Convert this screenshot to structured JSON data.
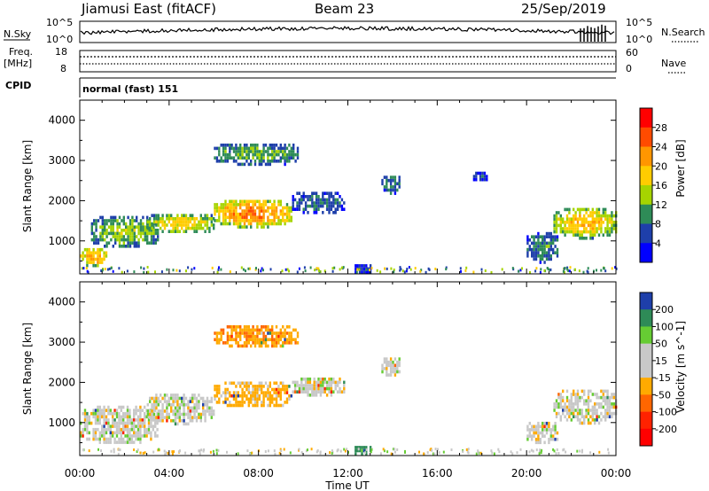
{
  "header": {
    "station": "Jiamusi East (fitACF)",
    "beam": "Beam 23",
    "date": "25/Sep/2019"
  },
  "top_panels": {
    "nsky_label": "N.Sky",
    "nsearch_label": "N.Search",
    "noise_ticks_left": [
      "10^5",
      "10^0"
    ],
    "noise_ticks_right": [
      "10^5",
      "10^0"
    ],
    "freq_label": "Freq.",
    "freq_unit": "[MHz]",
    "freq_ticks": [
      "18",
      "8"
    ],
    "nave_ticks": [
      "60",
      "0"
    ],
    "nave_label": "Nave",
    "cpid_label": "CPID",
    "cpid_text": "normal (fast) 151"
  },
  "axes": {
    "ylabel": "Slant Range [km]",
    "yticks": [
      "4000",
      "3000",
      "2000",
      "1000"
    ],
    "xticks": [
      "00:00",
      "04:00",
      "08:00",
      "12:00",
      "16:00",
      "20:00",
      "00:00"
    ],
    "xlabel": "Time UT"
  },
  "colorbars": {
    "power": {
      "label": "Power [dB]",
      "ticks": [
        "28",
        "24",
        "20",
        "16",
        "12",
        "8",
        "4"
      ],
      "colors": [
        "#ff0000",
        "#ff4b00",
        "#ff9600",
        "#ffcc00",
        "#a6d400",
        "#2e8b57",
        "#1e3faa",
        "#0000ff"
      ]
    },
    "velocity": {
      "label": "Velocity [m s^-1]",
      "ticks": [
        "200",
        "100",
        "50",
        "15",
        "-15",
        "-50",
        "-100",
        "-200"
      ],
      "colors": [
        "#1e3faa",
        "#2e8b57",
        "#66cc33",
        "#c8c8c8",
        "#c8c8c8",
        "#ffaa00",
        "#ff6600",
        "#ff2200",
        "#ff0000"
      ]
    }
  },
  "chart_data": [
    {
      "type": "heatmap",
      "title": "Power",
      "x_range_hours": [
        0,
        24
      ],
      "y_range_km": [
        180,
        4500
      ],
      "regions": [
        {
          "t0": 0.0,
          "t1": 1.2,
          "r0": 400,
          "r1": 900,
          "power": 22
        },
        {
          "t0": 0.5,
          "t1": 3.5,
          "r0": 850,
          "r1": 1700,
          "power": 14
        },
        {
          "t0": 3.0,
          "t1": 6.0,
          "r0": 1200,
          "r1": 1750,
          "power": 18
        },
        {
          "t0": 6.0,
          "t1": 9.5,
          "r0": 1350,
          "r1": 2100,
          "power": 24
        },
        {
          "t0": 9.5,
          "t1": 11.8,
          "r0": 1700,
          "r1": 2300,
          "power": 8
        },
        {
          "t0": 6.0,
          "t1": 9.8,
          "r0": 2900,
          "r1": 3500,
          "power": 12
        },
        {
          "t0": 13.5,
          "t1": 14.3,
          "r0": 2200,
          "r1": 2700,
          "power": 10
        },
        {
          "t0": 17.6,
          "t1": 18.2,
          "r0": 2500,
          "r1": 2800,
          "power": 6
        },
        {
          "t0": 20.0,
          "t1": 21.4,
          "r0": 500,
          "r1": 1300,
          "power": 10
        },
        {
          "t0": 21.2,
          "t1": 24.0,
          "r0": 1100,
          "r1": 1900,
          "power": 20
        },
        {
          "t0": 12.3,
          "t1": 13.0,
          "r0": 200,
          "r1": 500,
          "power": 6
        }
      ]
    },
    {
      "type": "heatmap",
      "title": "Velocity",
      "x_range_hours": [
        0,
        24
      ],
      "y_range_km": [
        180,
        4500
      ],
      "regions": [
        {
          "t0": 0.0,
          "t1": 3.5,
          "r0": 500,
          "r1": 1500,
          "velocity": 0
        },
        {
          "t0": 3.0,
          "t1": 6.0,
          "r0": 1000,
          "r1": 1800,
          "velocity": 0
        },
        {
          "t0": 6.0,
          "t1": 9.5,
          "r0": 1400,
          "r1": 2100,
          "velocity": -30
        },
        {
          "t0": 9.5,
          "t1": 11.8,
          "r0": 1700,
          "r1": 2200,
          "velocity": 0
        },
        {
          "t0": 6.0,
          "t1": 9.8,
          "r0": 2900,
          "r1": 3500,
          "velocity": -40
        },
        {
          "t0": 13.5,
          "t1": 14.3,
          "r0": 2200,
          "r1": 2700,
          "velocity": 0
        },
        {
          "t0": 20.0,
          "t1": 21.4,
          "r0": 500,
          "r1": 1100,
          "velocity": 0
        },
        {
          "t0": 21.2,
          "t1": 24.0,
          "r0": 1000,
          "r1": 1900,
          "velocity": 0
        },
        {
          "t0": 12.3,
          "t1": 13.0,
          "r0": 200,
          "r1": 500,
          "velocity": 80
        }
      ]
    }
  ]
}
